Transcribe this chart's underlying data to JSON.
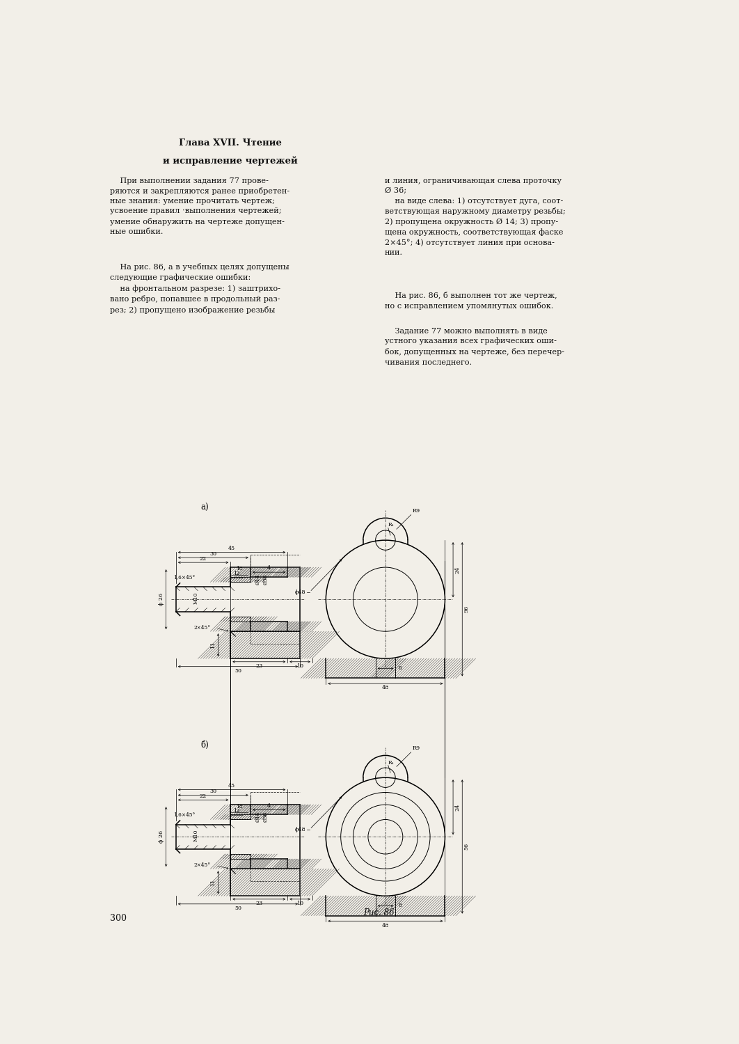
{
  "page_width": 10.62,
  "page_height": 15.0,
  "bg_color": "#f2efe8",
  "text_color": "#111111",
  "chapter_line1": "Глава XVII. Чтение",
  "chapter_line2": "и исправление чертежей",
  "col1_p1": "    При выполнении задания 77 прове-\nряются и закрепляются ранее приобретен-\nные знания: умение прочитать чертеж;\nусвоение правил ·выполнения чертежей;\nумение обнаружить на чертеже допущен-\nные ошибки.",
  "col1_p2": "    На рис. 86, а в учебных целях допущены\nследующие графические ошибки:\n    на фронтальном разрезе: 1) заштрихо-\nвано ребро, попавшее в продольный раз-\nрез; 2) пропущено изображение резьбы",
  "col2_p1": "и линия, ограничивающая слева проточку\nØ 36;\n    на виде слева: 1) отсутствует дуга, соот-\nветствующая наружному диаметру резьбы;\n2) пропущена окружность Ø 14; 3) пропу-\nщена окружность, соответствующая фаске\n2×45°; 4) отсутствует линия при основа-\nнии.",
  "col2_p2": "    На рис. 86, б выполнен тот же чертеж,\nно с исправлением упомянутых ошибок.",
  "col2_p3": "    Задание 77 можно выполнять в виде\nустного указания всех графических оши-\nбок, допущенных на чертеже, без перечер-\nчивания последнего.",
  "fig_caption": "Рис. 86",
  "page_num": "300"
}
